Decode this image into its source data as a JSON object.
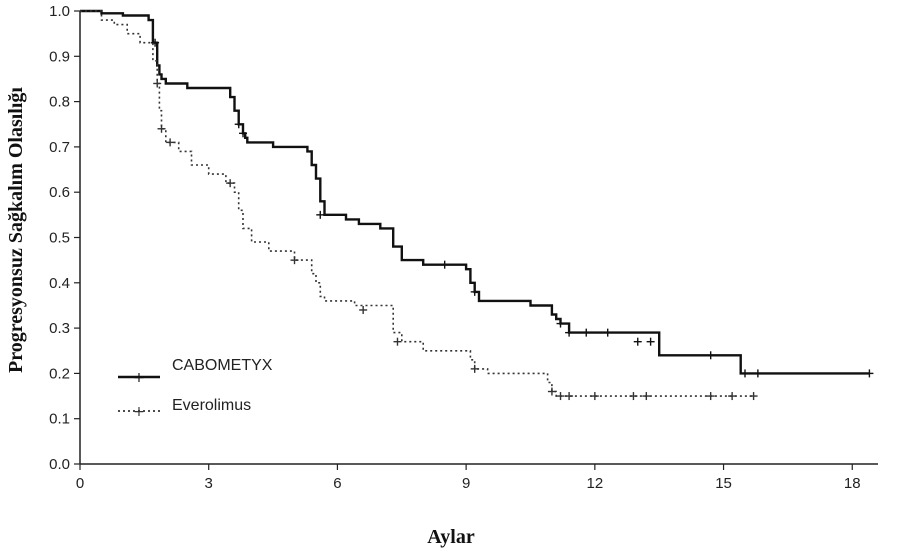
{
  "chart_data": {
    "type": "line",
    "title": "",
    "xlabel": "Aylar",
    "ylabel": "Progresyonsuz Sağkalım Olasılığı",
    "xlim": [
      0,
      18.6
    ],
    "ylim": [
      0,
      1.0
    ],
    "xticks": [
      "0",
      "3",
      "6",
      "9",
      "12",
      "15",
      "18"
    ],
    "yticks": [
      "0.0",
      "0.1",
      "0.2",
      "0.3",
      "0.4",
      "0.5",
      "0.6",
      "0.7",
      "0.8",
      "0.9",
      "1.0"
    ],
    "grid": false,
    "legend_position": "bottom-left",
    "step": true,
    "series": [
      {
        "name": "CABOMETYX",
        "style": "solid",
        "color": "#111111",
        "x": [
          0,
          0.5,
          1.0,
          1.6,
          1.7,
          1.8,
          1.85,
          1.9,
          2.0,
          2.5,
          3.5,
          3.6,
          3.7,
          3.8,
          3.85,
          3.9,
          4.5,
          5.3,
          5.4,
          5.5,
          5.6,
          5.7,
          6.2,
          6.5,
          7.0,
          7.3,
          7.5,
          8.0,
          9.0,
          9.1,
          9.2,
          9.3,
          10.5,
          11.0,
          11.1,
          11.2,
          11.4,
          13.5,
          15.4,
          18.4
        ],
        "y": [
          1.0,
          0.995,
          0.99,
          0.98,
          0.93,
          0.88,
          0.86,
          0.85,
          0.84,
          0.83,
          0.81,
          0.78,
          0.75,
          0.73,
          0.72,
          0.71,
          0.7,
          0.69,
          0.66,
          0.63,
          0.58,
          0.55,
          0.54,
          0.53,
          0.52,
          0.48,
          0.45,
          0.44,
          0.43,
          0.4,
          0.38,
          0.36,
          0.35,
          0.33,
          0.32,
          0.31,
          0.29,
          0.24,
          0.2,
          0.2
        ],
        "censor_x": [
          1.75,
          3.7,
          3.8,
          5.6,
          8.5,
          9.2,
          11.2,
          11.4,
          11.8,
          12.3,
          13.0,
          13.3,
          14.7,
          15.5,
          15.8,
          18.4
        ],
        "censor_y": [
          0.93,
          0.75,
          0.73,
          0.55,
          0.44,
          0.38,
          0.31,
          0.29,
          0.29,
          0.29,
          0.27,
          0.27,
          0.24,
          0.2,
          0.2,
          0.2
        ]
      },
      {
        "name": "Everolimus",
        "style": "dotted",
        "color": "#333333",
        "x": [
          0,
          0.5,
          0.8,
          1.1,
          1.4,
          1.7,
          1.8,
          1.85,
          1.9,
          2.0,
          2.3,
          2.6,
          3.0,
          3.4,
          3.6,
          3.7,
          3.8,
          4.0,
          4.4,
          5.0,
          5.4,
          5.5,
          5.6,
          5.7,
          6.4,
          7.3,
          7.5,
          8.0,
          9.1,
          9.2,
          9.5,
          10.9,
          11.0,
          11.1,
          15.7
        ],
        "y": [
          1.0,
          0.98,
          0.97,
          0.95,
          0.93,
          0.89,
          0.84,
          0.78,
          0.74,
          0.71,
          0.69,
          0.66,
          0.64,
          0.62,
          0.6,
          0.56,
          0.52,
          0.49,
          0.47,
          0.45,
          0.42,
          0.4,
          0.37,
          0.36,
          0.35,
          0.29,
          0.27,
          0.25,
          0.23,
          0.21,
          0.2,
          0.18,
          0.16,
          0.15,
          0.15
        ],
        "censor_x": [
          1.8,
          1.9,
          2.1,
          3.5,
          5.0,
          6.6,
          7.4,
          9.2,
          11.0,
          11.2,
          11.4,
          12.0,
          12.9,
          13.2,
          14.7,
          15.2,
          15.7
        ],
        "censor_y": [
          0.84,
          0.74,
          0.71,
          0.62,
          0.45,
          0.34,
          0.27,
          0.21,
          0.16,
          0.15,
          0.15,
          0.15,
          0.15,
          0.15,
          0.15,
          0.15,
          0.15
        ]
      }
    ]
  }
}
